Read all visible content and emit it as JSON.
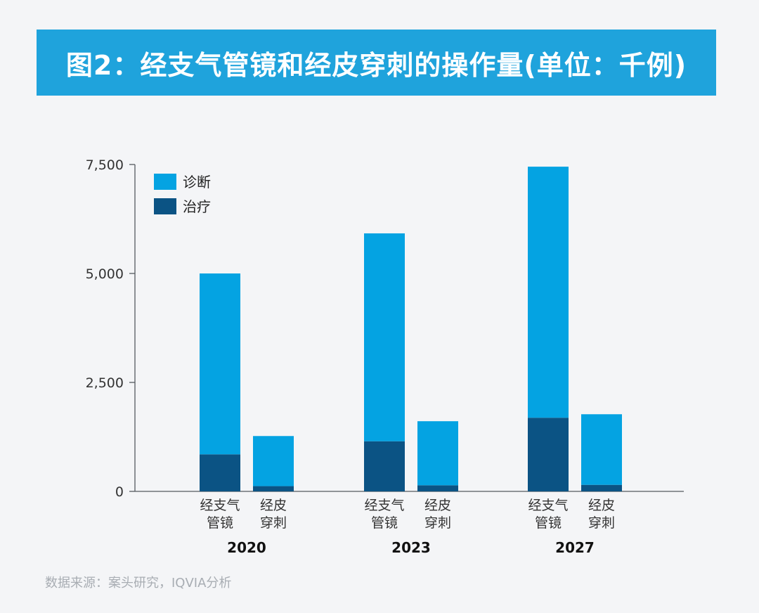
{
  "header": {
    "title": "图2：经支气管镜和经皮穿刺的操作量(单位：千例)"
  },
  "chart_data": {
    "type": "bar",
    "stacked": true,
    "groups": [
      {
        "year": "2020",
        "bars": [
          {
            "label_lines": [
              "经支气管",
              "镜"
            ],
            "label_top": "经支气",
            "label_bottom": "管镜",
            "values": {
              "诊断": 4150,
              "治疗": 850
            }
          },
          {
            "label_top": "经皮",
            "label_bottom": "穿刺",
            "values": {
              "诊断": 1150,
              "治疗": 120
            }
          }
        ]
      },
      {
        "year": "2023",
        "bars": [
          {
            "label_top": "经支气",
            "label_bottom": "管镜",
            "values": {
              "诊断": 4770,
              "治疗": 1150
            }
          },
          {
            "label_top": "经皮",
            "label_bottom": "穿刺",
            "values": {
              "诊断": 1470,
              "治疗": 140
            }
          }
        ]
      },
      {
        "year": "2027",
        "bars": [
          {
            "label_top": "经支气",
            "label_bottom": "管镜",
            "values": {
              "诊断": 5760,
              "治疗": 1690
            }
          },
          {
            "label_top": "经皮",
            "label_bottom": "穿刺",
            "values": {
              "诊断": 1620,
              "治疗": 150
            }
          }
        ]
      }
    ],
    "series": [
      {
        "name": "治疗",
        "color": "#0b5384"
      },
      {
        "name": "诊断",
        "color": "#04a3e2"
      }
    ],
    "legend": [
      {
        "name": "诊断",
        "color": "#04a3e2"
      },
      {
        "name": "治疗",
        "color": "#0b5384"
      }
    ],
    "ylim": [
      0,
      7500
    ],
    "yticks": [
      0,
      2500,
      5000,
      7500
    ],
    "ytick_labels": [
      "0",
      "2,500",
      "5,000",
      "7,500"
    ],
    "legend_position": "top-left",
    "grid": false
  },
  "footer": {
    "source": "数据来源：案头研究，IQVIA分析"
  }
}
